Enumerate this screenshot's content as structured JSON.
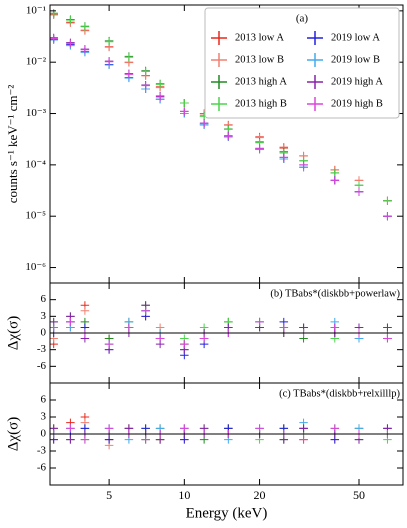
{
  "chart_data": [
    {
      "type": "scatter",
      "annotation": "(a)",
      "ylabel": "counts s⁻¹ keV⁻¹ cm⁻²",
      "x": [
        3,
        3.5,
        4,
        5,
        6,
        7,
        8,
        10,
        12,
        15,
        20,
        25,
        30,
        40,
        50,
        65
      ],
      "xlim": [
        2.9,
        75
      ],
      "xlog": true,
      "xticks": [
        5,
        10,
        20,
        50
      ],
      "ylim": [
        5e-07,
        0.13
      ],
      "ylog": true,
      "yticks": [
        {
          "value": 1e-06,
          "label": "10⁻⁶"
        },
        {
          "value": 1e-05,
          "label": "10⁻⁵"
        },
        {
          "value": 0.0001,
          "label": "10⁻⁴"
        },
        {
          "value": 0.001,
          "label": "10⁻³"
        },
        {
          "value": 0.01,
          "label": "10⁻²"
        },
        {
          "value": 0.1,
          "label": "10⁻¹"
        }
      ],
      "legend": "upper right",
      "series": [
        {
          "name": "2013 low A",
          "color": "#e8291c",
          "values": [
            0.085,
            0.06,
            0.042,
            0.02,
            0.01,
            0.0055,
            0.0033,
            0.0016,
            0.001,
            0.0006,
            0.00035,
            0.00022,
            0.00015,
            8e-05,
            5e-05,
            2e-05
          ]
        },
        {
          "name": "2013 low B",
          "color": "#f08070",
          "values": [
            0.083,
            0.058,
            0.041,
            0.0195,
            0.0098,
            0.0054,
            0.0032,
            0.0016,
            0.00098,
            0.00059,
            0.00034,
            0.00021,
            0.00015,
            8e-05,
            5e-05,
            2e-05
          ]
        },
        {
          "name": "2013 high A",
          "color": "#228b22",
          "values": [
            0.09,
            0.068,
            0.05,
            0.026,
            0.013,
            0.0068,
            0.0038,
            0.0016,
            0.0009,
            0.0005,
            0.00028,
            0.00018,
            0.00012,
            7e-05,
            4e-05,
            2e-05
          ]
        },
        {
          "name": "2013 high B",
          "color": "#4cd44c",
          "values": [
            0.088,
            0.066,
            0.049,
            0.025,
            0.0125,
            0.0066,
            0.0037,
            0.0016,
            0.00088,
            0.00049,
            0.00027,
            0.00017,
            0.00012,
            7e-05,
            4e-05,
            2e-05
          ]
        },
        {
          "name": "2019 low A",
          "color": "#2222dd",
          "values": [
            0.028,
            0.022,
            0.016,
            0.009,
            0.005,
            0.003,
            0.0019,
            0.001,
            0.0006,
            0.00035,
            0.0002,
            0.00013,
            9e-05,
            5e-05,
            3e-05,
            1e-05
          ]
        },
        {
          "name": "2019 low B",
          "color": "#44aaee",
          "values": [
            0.027,
            0.021,
            0.0155,
            0.0088,
            0.0049,
            0.003,
            0.0019,
            0.001,
            0.0006,
            0.00035,
            0.0002,
            0.00013,
            9e-05,
            5e-05,
            3e-05,
            1e-05
          ]
        },
        {
          "name": "2019 high A",
          "color": "#8822aa",
          "values": [
            0.03,
            0.024,
            0.018,
            0.0105,
            0.006,
            0.0036,
            0.0022,
            0.0011,
            0.00065,
            0.00037,
            0.00021,
            0.00014,
            0.0001,
            5e-05,
            3e-05,
            1e-05
          ]
        },
        {
          "name": "2019 high B",
          "color": "#dd44dd",
          "values": [
            0.029,
            0.023,
            0.0175,
            0.0102,
            0.0058,
            0.0035,
            0.0021,
            0.0011,
            0.00064,
            0.00036,
            0.00021,
            0.00014,
            0.0001,
            5e-05,
            3e-05,
            1e-05
          ]
        }
      ]
    },
    {
      "type": "scatter",
      "annotation": "(b) TBabs*(diskbb+powerlaw)",
      "ylabel": "Δχ(σ)",
      "x": [
        3,
        3.5,
        4,
        5,
        6,
        7,
        8,
        10,
        12,
        15,
        20,
        25,
        30,
        40,
        50,
        65
      ],
      "xlim": [
        2.9,
        75
      ],
      "xlog": true,
      "xticks": [
        5,
        10,
        20,
        50
      ],
      "ylim": [
        -9,
        9
      ],
      "yticks": [
        -6,
        -3,
        0,
        3,
        6
      ],
      "series": [
        {
          "color": "#e8291c",
          "values": [
            -2,
            1,
            5,
            -1,
            2,
            4,
            0,
            -3,
            -1,
            1,
            2,
            1,
            0,
            1,
            -1,
            0
          ]
        },
        {
          "color": "#f08070",
          "values": [
            -1,
            2,
            4,
            -2,
            1,
            3,
            1,
            -2,
            -1,
            2,
            1,
            0,
            1,
            0,
            1,
            -1
          ]
        },
        {
          "color": "#228b22",
          "values": [
            1,
            3,
            2,
            -1,
            1,
            5,
            -1,
            -2,
            0,
            2,
            1,
            1,
            -1,
            0,
            0,
            1
          ]
        },
        {
          "color": "#4cd44c",
          "values": [
            2,
            2,
            1,
            -2,
            2,
            4,
            0,
            -1,
            1,
            2,
            2,
            0,
            1,
            -1,
            1,
            0
          ]
        },
        {
          "color": "#2222dd",
          "values": [
            0,
            2,
            1,
            -3,
            1,
            3,
            -1,
            -4,
            -2,
            0,
            1,
            2,
            1,
            1,
            0,
            -1
          ]
        },
        {
          "color": "#44aaee",
          "values": [
            1,
            1,
            0,
            -2,
            2,
            4,
            0,
            -3,
            -1,
            1,
            2,
            1,
            0,
            2,
            -1,
            0
          ]
        },
        {
          "color": "#8822aa",
          "values": [
            2,
            3,
            -1,
            -3,
            0,
            5,
            -2,
            -3,
            0,
            1,
            1,
            0,
            1,
            0,
            1,
            1
          ]
        },
        {
          "color": "#dd44dd",
          "values": [
            1,
            2,
            0,
            -2,
            1,
            4,
            -1,
            -2,
            -1,
            0,
            2,
            1,
            0,
            1,
            0,
            -1
          ]
        }
      ]
    },
    {
      "type": "scatter",
      "annotation": "(c) TBabs*(diskbb+relxilllp)",
      "ylabel": "Δχ(σ)",
      "xlabel": "Energy (keV)",
      "x": [
        3,
        3.5,
        4,
        5,
        6,
        7,
        8,
        10,
        12,
        15,
        20,
        25,
        30,
        40,
        50,
        65
      ],
      "xlim": [
        2.9,
        75
      ],
      "xlog": true,
      "xticks": [
        5,
        10,
        20,
        50
      ],
      "ylim": [
        -9,
        9
      ],
      "yticks": [
        -6,
        -3,
        0,
        3,
        6
      ],
      "series": [
        {
          "color": "#e8291c",
          "values": [
            1,
            2,
            3,
            -1,
            1,
            0,
            -1,
            1,
            0,
            1,
            0,
            1,
            -1,
            0,
            1,
            0
          ]
        },
        {
          "color": "#f08070",
          "values": [
            -1,
            1,
            2,
            -2,
            0,
            1,
            0,
            -1,
            1,
            0,
            1,
            0,
            1,
            -1,
            0,
            1
          ]
        },
        {
          "color": "#228b22",
          "values": [
            0,
            -1,
            1,
            0,
            1,
            -1,
            1,
            0,
            -1,
            1,
            0,
            -1,
            0,
            1,
            -1,
            0
          ]
        },
        {
          "color": "#4cd44c",
          "values": [
            1,
            0,
            -1,
            1,
            0,
            1,
            -1,
            0,
            1,
            0,
            -1,
            1,
            0,
            0,
            1,
            -1
          ]
        },
        {
          "color": "#2222dd",
          "values": [
            -1,
            0,
            1,
            -1,
            0,
            1,
            0,
            -1,
            0,
            1,
            0,
            1,
            1,
            -1,
            0,
            1
          ]
        },
        {
          "color": "#44aaee",
          "values": [
            0,
            1,
            0,
            1,
            -1,
            0,
            1,
            1,
            0,
            -1,
            1,
            0,
            2,
            0,
            1,
            0
          ]
        },
        {
          "color": "#8822aa",
          "values": [
            1,
            -1,
            0,
            0,
            1,
            0,
            -1,
            0,
            1,
            0,
            0,
            -1,
            1,
            0,
            -1,
            1
          ]
        },
        {
          "color": "#dd44dd",
          "values": [
            0,
            1,
            -1,
            1,
            0,
            -1,
            0,
            1,
            0,
            0,
            1,
            0,
            -1,
            1,
            0,
            0
          ]
        }
      ]
    }
  ]
}
